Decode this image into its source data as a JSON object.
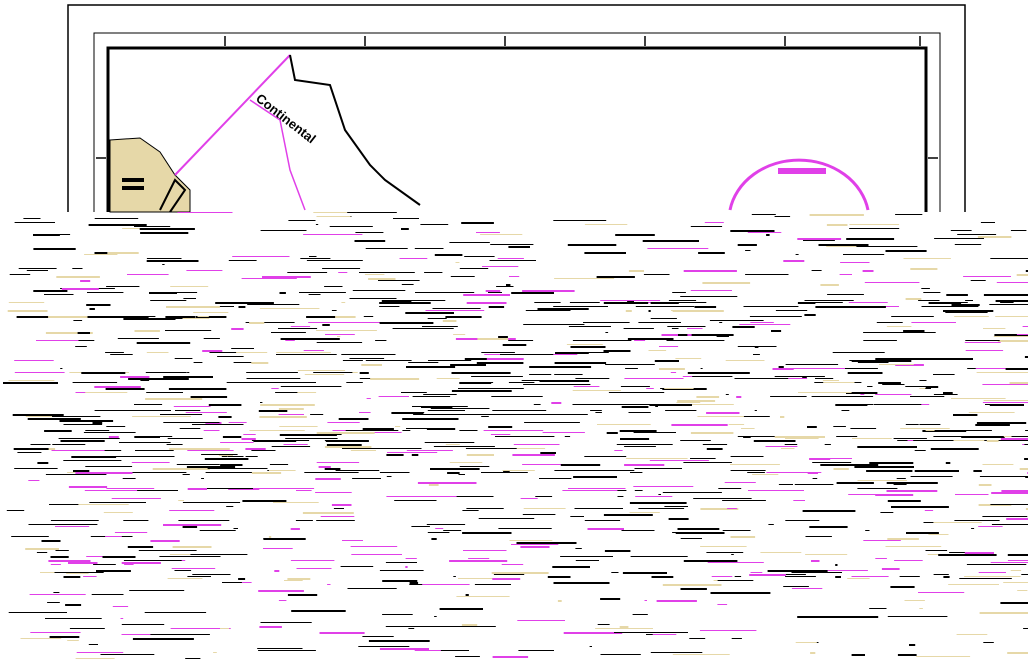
{
  "drawing": {
    "street_label": "Continental"
  }
}
